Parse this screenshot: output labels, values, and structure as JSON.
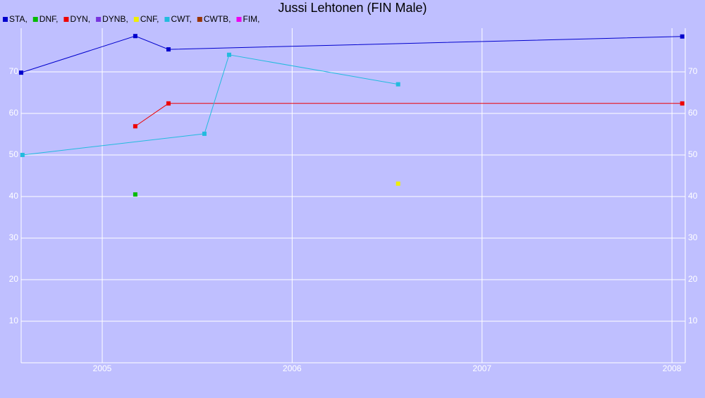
{
  "chart_data": {
    "type": "line",
    "title": "Jussi Lehtonen (FIN Male)",
    "xlim": [
      2004.573,
      2008.07
    ],
    "xticks": [
      2005,
      2006,
      2007,
      2008
    ],
    "ylim": [
      0,
      80.5
    ],
    "yticks": [
      10,
      20,
      30,
      40,
      50,
      60,
      70
    ],
    "grid": true,
    "legend": "top-left",
    "series": [
      {
        "name": "STA,",
        "color": "#0000cc",
        "x": [
          2004.573,
          2005.174,
          2005.349,
          2008.054
        ],
        "values": [
          69.8,
          78.6,
          75.4,
          78.5
        ]
      },
      {
        "name": "DNF,",
        "color": "#00bb00",
        "x": [
          2005.174
        ],
        "values": [
          40.5
        ]
      },
      {
        "name": "DYN,",
        "color": "#ee0000",
        "x": [
          2005.174,
          2005.349,
          2008.054
        ],
        "values": [
          56.9,
          62.4,
          62.4
        ]
      },
      {
        "name": "DYNB,",
        "color": "#7733dd",
        "x": [],
        "values": []
      },
      {
        "name": "CNF,",
        "color": "#eeee00",
        "x": [
          2006.558
        ],
        "values": [
          43.1
        ]
      },
      {
        "name": "CWT,",
        "color": "#22bbdd",
        "x": [
          2004.58,
          2005.538,
          2005.668,
          2006.558
        ],
        "values": [
          50.0,
          55.1,
          74.1,
          67.0
        ]
      },
      {
        "name": "CWTB,",
        "color": "#993300",
        "x": [],
        "values": []
      },
      {
        "name": "FIM,",
        "color": "#ee00ee",
        "x": [],
        "values": []
      }
    ]
  }
}
